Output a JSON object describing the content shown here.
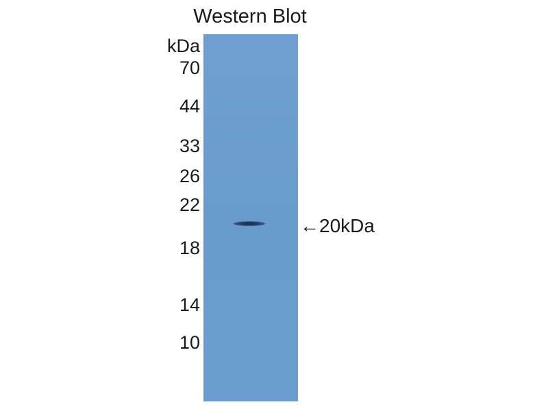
{
  "title": "Western Blot",
  "unit_label": "kDa",
  "markers": [
    "70",
    "44",
    "33",
    "26",
    "22",
    "18",
    "14",
    "10"
  ],
  "band_annotation": "←20kDa",
  "colors": {
    "membrane": "#6b9cd0",
    "band": "#1e3552"
  }
}
